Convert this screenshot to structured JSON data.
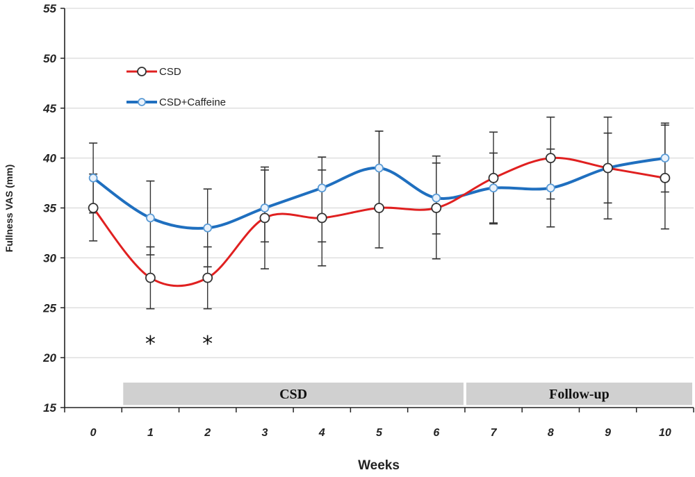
{
  "chart_data": {
    "type": "line",
    "xlabel": "Weeks",
    "ylabel": "Fullness VAS (mm)",
    "x": [
      0,
      1,
      2,
      3,
      4,
      5,
      6,
      7,
      8,
      9,
      10
    ],
    "x_tick_labels": [
      "0",
      "1",
      "2",
      "3",
      "4",
      "5",
      "6",
      "7",
      "8",
      "9",
      "10"
    ],
    "ylim": [
      15,
      55
    ],
    "y_ticks": [
      15,
      20,
      25,
      30,
      35,
      40,
      45,
      50,
      55
    ],
    "grid": true,
    "legend_position": "top-left",
    "series": [
      {
        "name": "CSD",
        "color": "#e02020",
        "marker": "white-circle",
        "values": [
          35,
          28,
          28,
          34,
          34,
          35,
          35,
          38,
          40,
          39,
          38
        ],
        "error_low": [
          31.7,
          24.9,
          24.9,
          28.9,
          29.2,
          31.0,
          29.9,
          33.5,
          33.1,
          33.9,
          32.9
        ],
        "error_high": [
          38.4,
          31.1,
          31.1,
          39.1,
          38.8,
          42.7,
          40.2,
          42.6,
          44.1,
          44.1,
          43.3
        ]
      },
      {
        "name": "CSD+Caffeine",
        "color": "#1f6fbf",
        "marker": "blue-ring",
        "values": [
          38,
          34,
          33,
          35,
          37,
          39,
          36,
          37,
          37,
          39,
          40
        ],
        "error_low": [
          34.5,
          30.3,
          29.1,
          31.6,
          31.6,
          35.0,
          32.4,
          33.4,
          35.9,
          35.5,
          36.6
        ],
        "error_high": [
          41.5,
          37.7,
          36.9,
          38.8,
          40.1,
          42.7,
          39.5,
          40.5,
          40.9,
          42.5,
          43.5
        ]
      }
    ],
    "significance": [
      {
        "x": 1,
        "label": "*"
      },
      {
        "x": 2,
        "label": "*"
      }
    ],
    "phase_bands": [
      {
        "label": "CSD",
        "from": 0.5,
        "to": 6.5
      },
      {
        "label": "Follow-up",
        "from": 6.5,
        "to": 10.5
      }
    ]
  }
}
